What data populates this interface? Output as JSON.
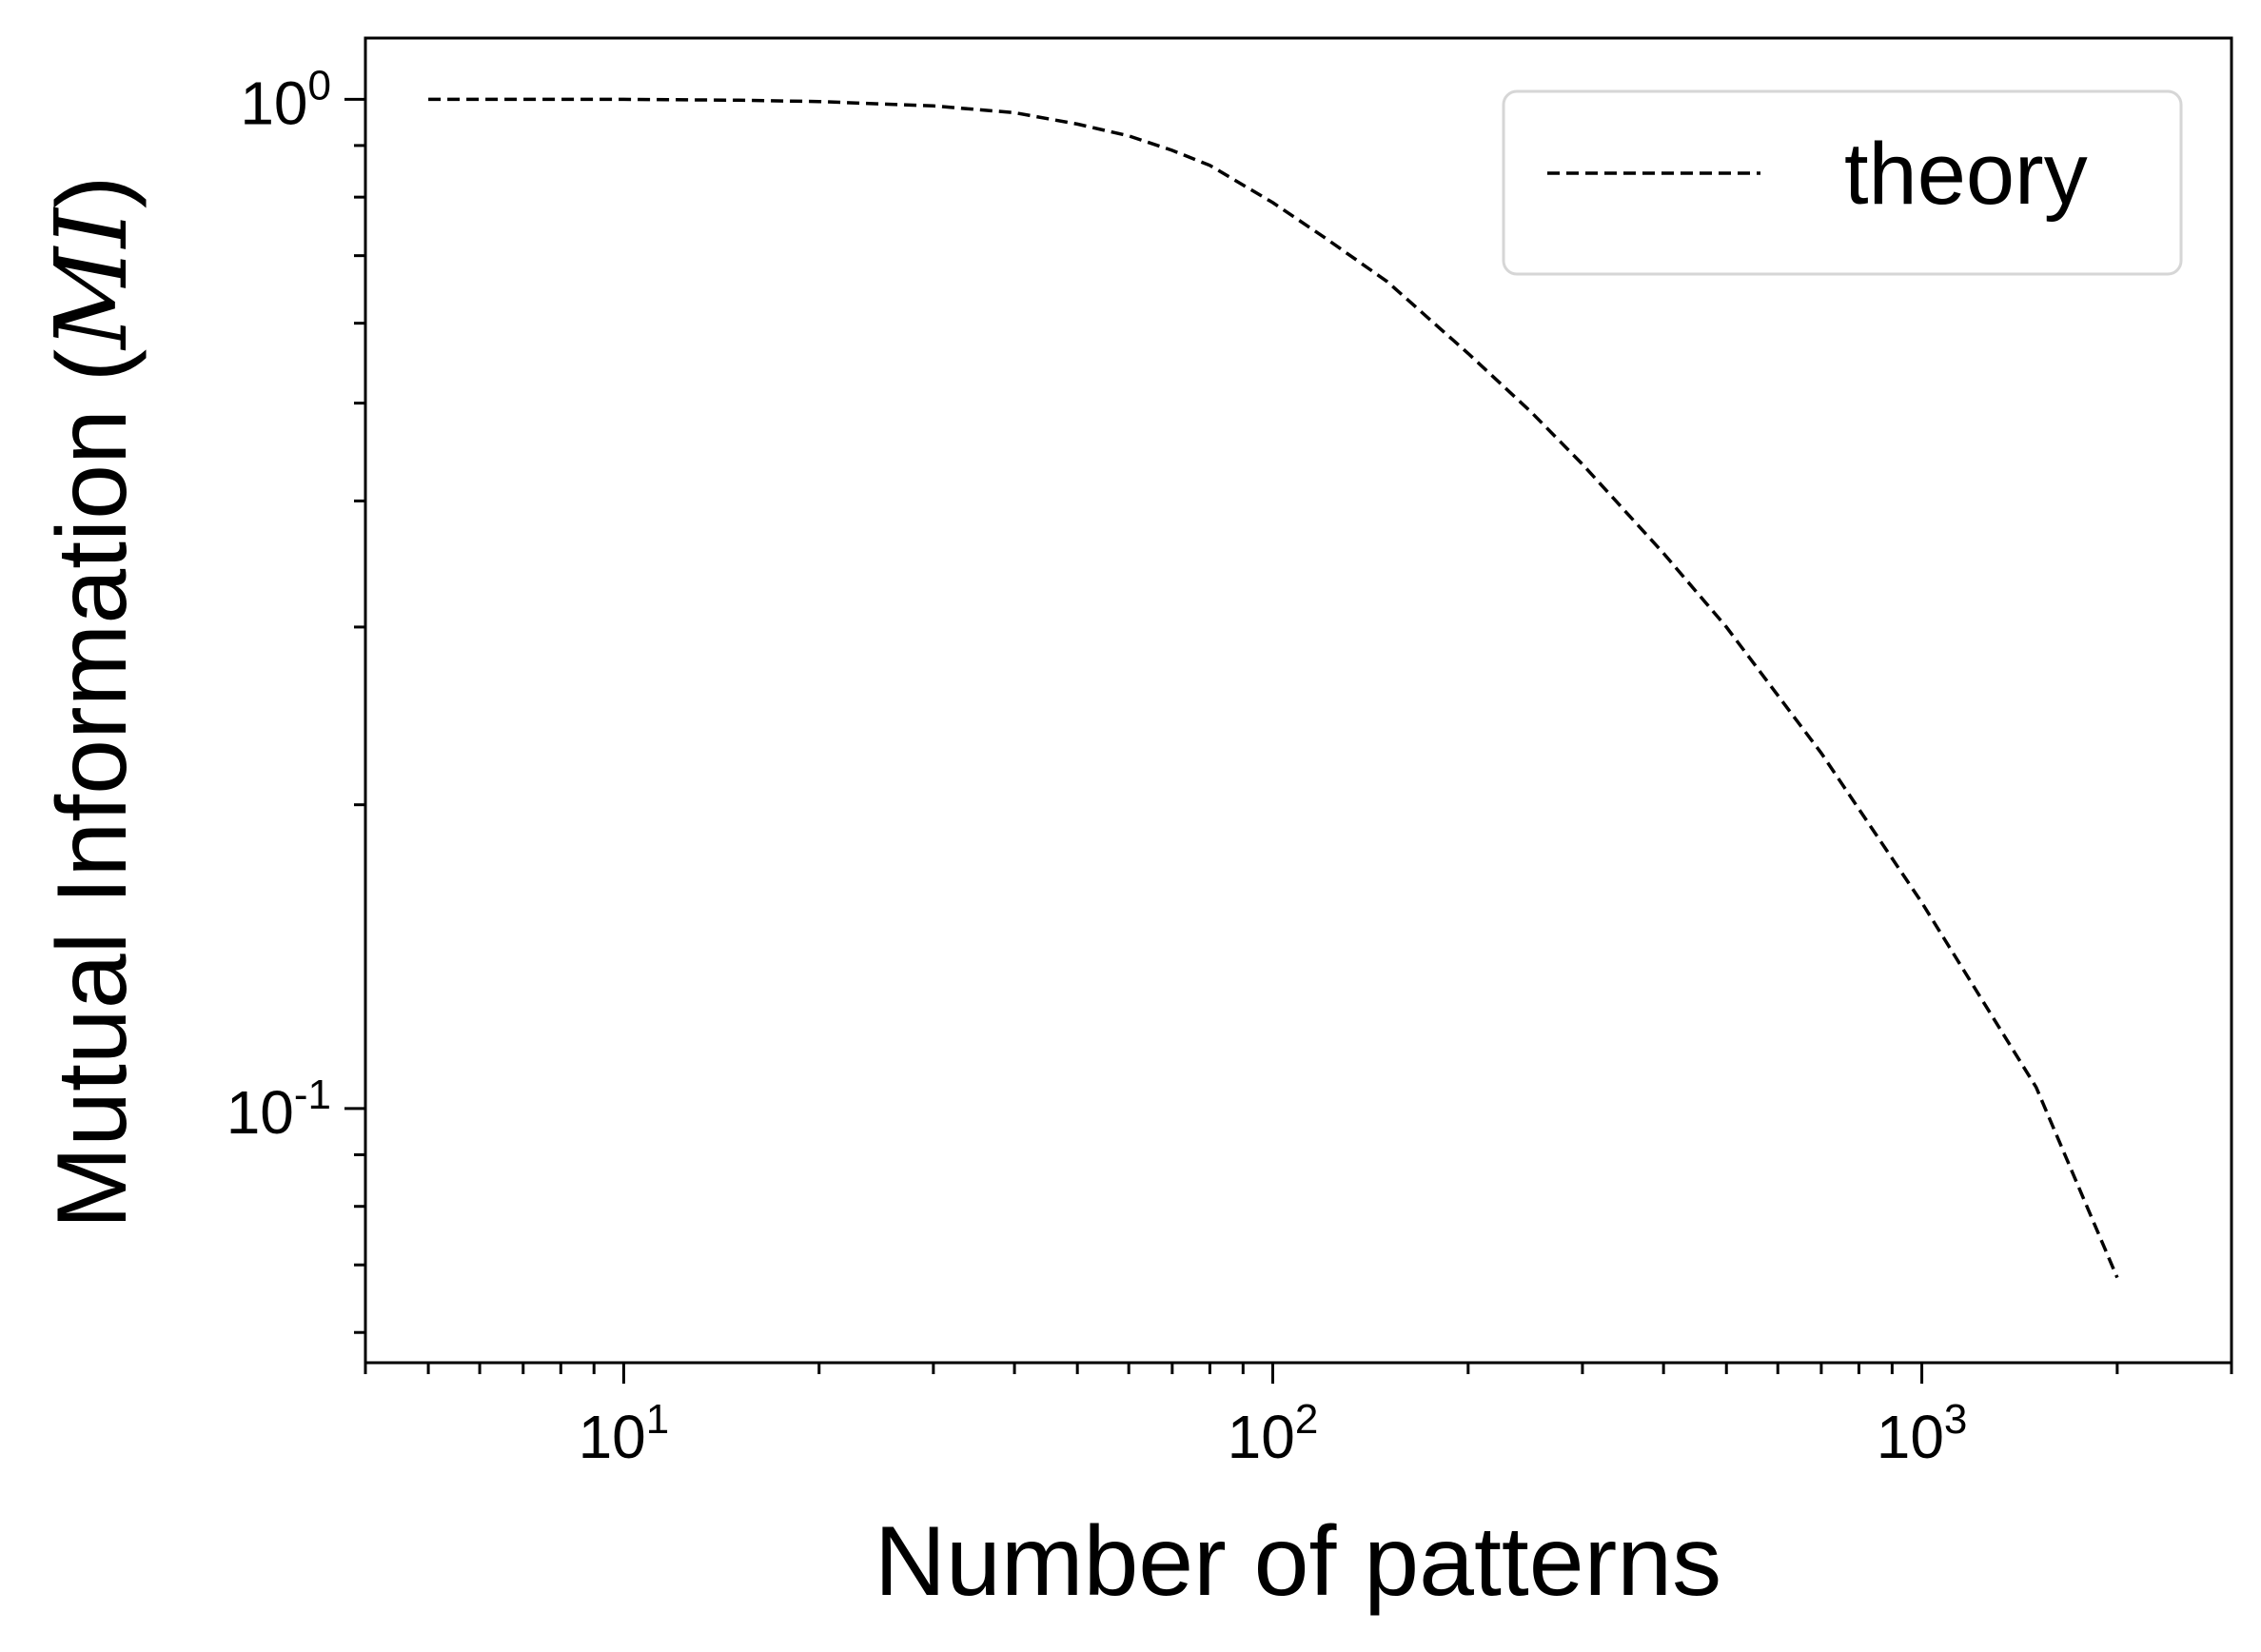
{
  "chart_data": {
    "type": "line",
    "title": "",
    "xlabel": "Number of patterns",
    "ylabel": {
      "text": "Mutual Information (",
      "math": "MI",
      "close": ")"
    },
    "xscale": "log",
    "yscale": "log",
    "xlim": [
      4,
      3000
    ],
    "ylim": [
      0.056,
      1.15
    ],
    "grid": false,
    "legend": {
      "position": "top-right",
      "entries": [
        "theory"
      ]
    },
    "x_ticks": [
      {
        "base": "10",
        "exp": "1",
        "value": 10
      },
      {
        "base": "10",
        "exp": "2",
        "value": 100
      },
      {
        "base": "10",
        "exp": "3",
        "value": 1000
      }
    ],
    "y_ticks": [
      {
        "base": "10",
        "exp": "0",
        "value": 1
      },
      {
        "base": "10",
        "exp": "-1",
        "value": 0.1
      }
    ],
    "series": [
      {
        "name": "theory",
        "style": "dashed",
        "color": "#000000",
        "x": [
          5,
          7,
          10,
          15,
          20,
          30,
          40,
          50,
          60,
          70,
          80,
          100,
          120,
          150,
          200,
          250,
          300,
          400,
          500,
          700,
          1000,
          1500,
          2000
        ],
        "y": [
          1.0,
          1.0,
          1.0,
          0.998,
          0.995,
          0.985,
          0.97,
          0.945,
          0.92,
          0.89,
          0.86,
          0.79,
          0.73,
          0.66,
          0.56,
          0.49,
          0.435,
          0.355,
          0.3,
          0.225,
          0.16,
          0.105,
          0.068
        ]
      }
    ]
  }
}
